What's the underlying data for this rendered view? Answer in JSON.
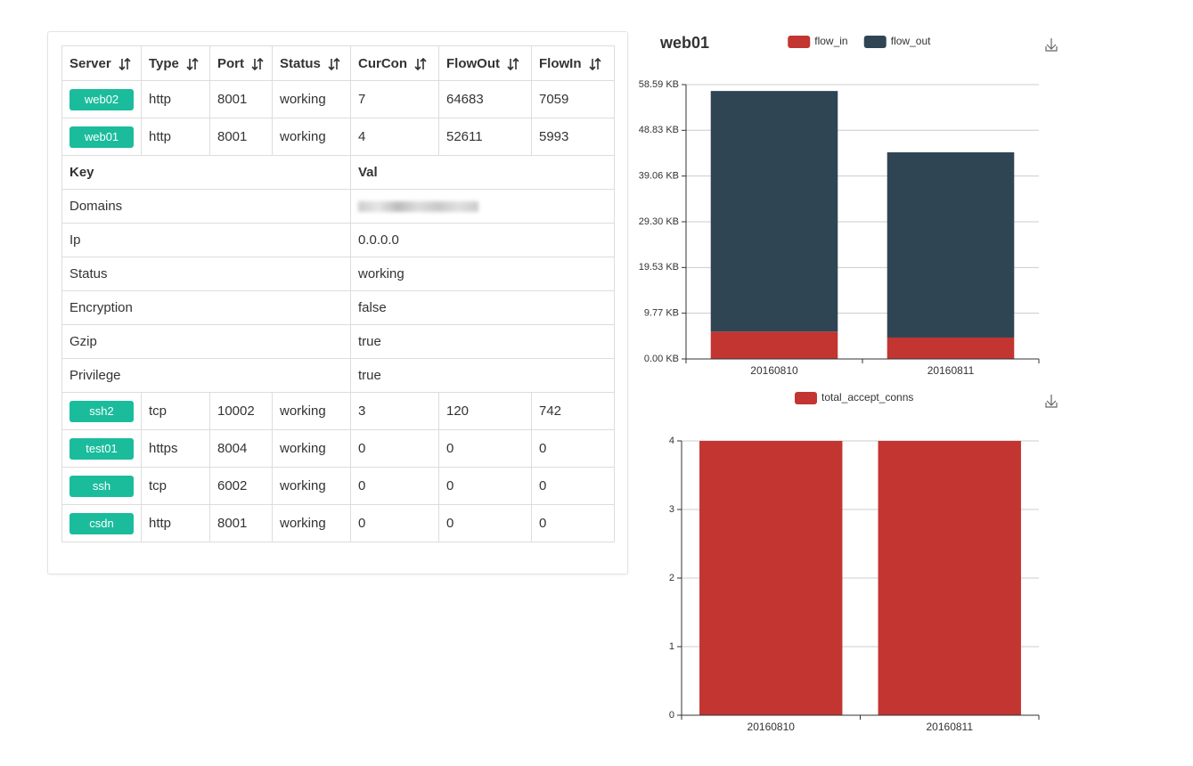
{
  "table": {
    "headers": [
      "Server",
      "Type",
      "Port",
      "Status",
      "CurCon",
      "FlowOut",
      "FlowIn"
    ],
    "rows": [
      [
        "web02",
        "http",
        8001,
        "working",
        7,
        64683,
        7059
      ],
      [
        "web01",
        "http",
        8001,
        "working",
        4,
        52611,
        5993
      ]
    ],
    "detail": {
      "headers": [
        "Key",
        "Val"
      ],
      "rows": [
        [
          "Domains"
        ],
        [
          "Ip",
          "0.0.0.0"
        ],
        [
          "Status",
          "working"
        ],
        [
          "Encryption",
          "false"
        ],
        [
          "Gzip",
          "true"
        ],
        [
          "Privilege",
          "true"
        ]
      ]
    },
    "more_rows": [
      [
        "ssh2",
        "tcp",
        10002,
        "working",
        3,
        120,
        742
      ],
      [
        "test01",
        "https",
        8004,
        "working",
        0,
        0,
        0
      ],
      [
        "ssh",
        "tcp",
        6002,
        "working",
        0,
        0,
        0
      ],
      [
        "csdn",
        "http",
        8001,
        "working",
        0,
        0,
        0
      ]
    ]
  },
  "chart_data": [
    {
      "type": "bar",
      "stacked": true,
      "title": "web01",
      "categories": [
        "20160810",
        "20160811"
      ],
      "series": [
        {
          "name": "flow_in",
          "color": "#c23531",
          "values": [
            5.85,
            4.57
          ]
        },
        {
          "name": "flow_out",
          "color": "#2f4554",
          "values": [
            51.38,
            39.56
          ]
        }
      ],
      "ylim": [
        0,
        58.59
      ],
      "yticks": [
        {
          "value": 0,
          "label": "0.00 KB"
        },
        {
          "value": 9.77,
          "label": "9.77 KB"
        },
        {
          "value": 19.53,
          "label": "19.53 KB"
        },
        {
          "value": 29.3,
          "label": "29.30 KB"
        },
        {
          "value": 39.06,
          "label": "39.06 KB"
        },
        {
          "value": 48.83,
          "label": "48.83 KB"
        },
        {
          "value": 58.59,
          "label": "58.59 KB"
        }
      ],
      "grid": true,
      "legend": "top"
    },
    {
      "type": "bar",
      "categories": [
        "20160810",
        "20160811"
      ],
      "series": [
        {
          "name": "total_accept_conns",
          "color": "#c23531",
          "values": [
            4,
            4
          ]
        }
      ],
      "ylim": [
        0,
        4
      ],
      "yticks": [
        0,
        1,
        2,
        3,
        4
      ],
      "grid": true,
      "legend": "top"
    }
  ]
}
